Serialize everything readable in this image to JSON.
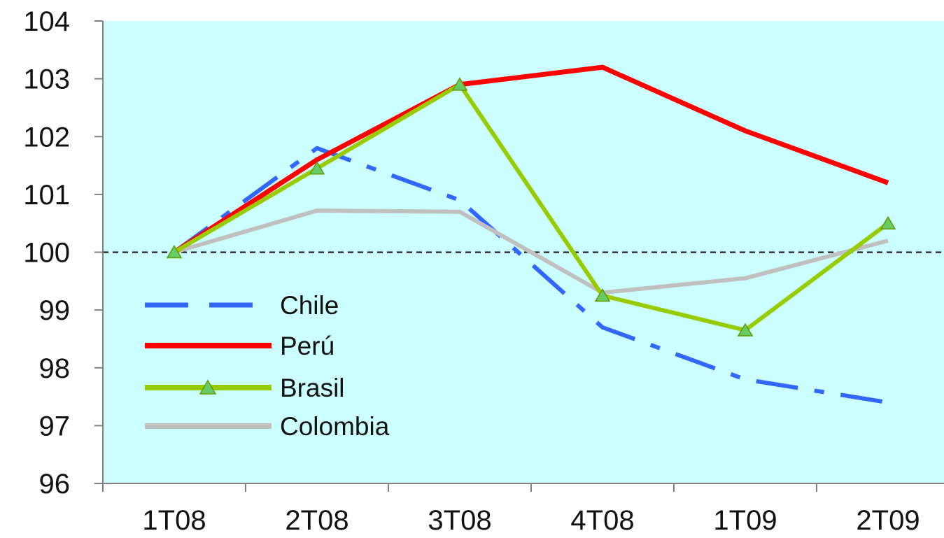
{
  "chart_data": {
    "type": "line",
    "categories": [
      "1T08",
      "2T08",
      "3T08",
      "4T08",
      "1T09",
      "2T09"
    ],
    "ylim": [
      96,
      104
    ],
    "yticks": [
      "96",
      "97",
      "98",
      "99",
      "100",
      "101",
      "102",
      "103",
      "104"
    ],
    "reference_line": 100,
    "grid": false,
    "legend_position": "bottom-left (inside plot)",
    "plot_background": "#ccffff",
    "series": [
      {
        "name": "Chile",
        "values": [
          100,
          101.8,
          100.9,
          98.7,
          97.8,
          97.4
        ],
        "color": "#3366ff",
        "style": "dashed",
        "marker": "none"
      },
      {
        "name": "Perú",
        "values": [
          100,
          101.6,
          102.9,
          103.2,
          102.1,
          101.2
        ],
        "color": "#ff0000",
        "style": "solid",
        "marker": "none"
      },
      {
        "name": "Brasil",
        "values": [
          100,
          101.45,
          102.9,
          99.25,
          98.65,
          100.5
        ],
        "color": "#99cc00",
        "style": "solid",
        "marker": "triangle"
      },
      {
        "name": "Colombia",
        "values": [
          100,
          100.72,
          100.7,
          99.3,
          99.55,
          100.2
        ],
        "color": "#c0c0c0",
        "style": "solid",
        "marker": "none"
      }
    ]
  }
}
